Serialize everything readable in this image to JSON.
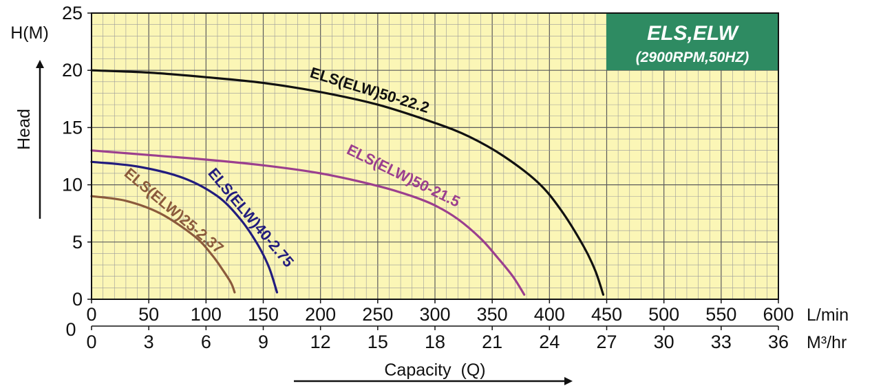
{
  "chart_data": {
    "type": "line",
    "title": "ELS,ELW",
    "subtitle": "(2900RPM,50HZ)",
    "ylabel": "Head",
    "yunit": "H(M)",
    "xlabel": "Capacity  (Q)",
    "x_unit_primary": "L/min",
    "x_unit_secondary": "M³/hr",
    "secondary_axis_zero": "0",
    "xlim": [
      0,
      600
    ],
    "ylim": [
      0,
      25
    ],
    "grid": true,
    "x_ticks": [
      "0",
      "50",
      "100",
      "150",
      "200",
      "250",
      "300",
      "350",
      "400",
      "450",
      "500",
      "550",
      "600"
    ],
    "x_ticks_secondary": [
      "0",
      "3",
      "6",
      "9",
      "12",
      "15",
      "18",
      "21",
      "24",
      "27",
      "30",
      "33",
      "36"
    ],
    "y_ticks": [
      "0",
      "5",
      "10",
      "15",
      "20",
      "25"
    ],
    "series": [
      {
        "name": "ELS(ELW)50-22.2",
        "color": "#111111",
        "x": [
          0,
          50,
          100,
          150,
          200,
          250,
          300,
          330,
          360,
          390,
          410,
          430,
          440,
          447
        ],
        "y": [
          20,
          19.8,
          19.4,
          18.9,
          18.1,
          17.0,
          15.4,
          14.2,
          12.5,
          10.2,
          7.8,
          4.6,
          2.5,
          0.4
        ]
      },
      {
        "name": "ELS(ELW)50-21.5",
        "color": "#9b3f8e",
        "x": [
          0,
          50,
          100,
          150,
          200,
          250,
          280,
          300,
          320,
          340,
          355,
          368,
          378
        ],
        "y": [
          13,
          12.6,
          12.2,
          11.7,
          11.0,
          9.9,
          9.0,
          8.2,
          7.0,
          5.3,
          3.6,
          2.0,
          0.4
        ]
      },
      {
        "name": "ELS(ELW)40-2.75",
        "color": "#221c7e",
        "x": [
          0,
          40,
          80,
          110,
          130,
          145,
          155,
          162
        ],
        "y": [
          12,
          11.6,
          10.6,
          9.0,
          7.0,
          4.8,
          2.8,
          0.6
        ]
      },
      {
        "name": "ELS(ELW)25-2.37",
        "color": "#8b5a3c",
        "x": [
          0,
          30,
          60,
          90,
          105,
          115,
          122,
          125
        ],
        "y": [
          9,
          8.6,
          7.5,
          5.5,
          3.9,
          2.5,
          1.4,
          0.6
        ]
      }
    ]
  }
}
